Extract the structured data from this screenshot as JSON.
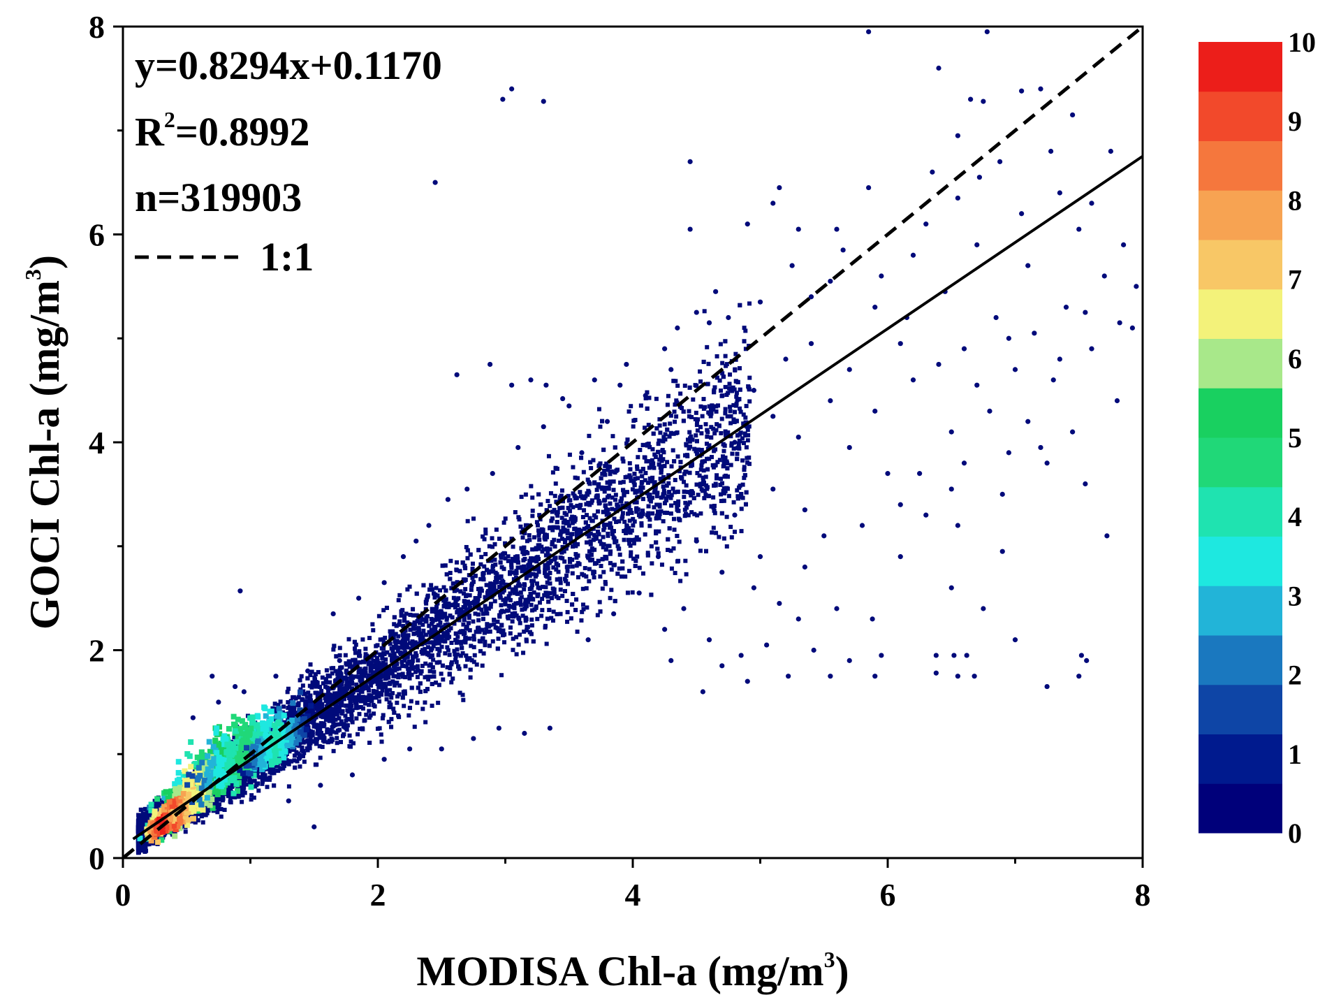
{
  "chart_data": {
    "type": "scatter",
    "subtype": "density-scatter",
    "xlabel": "MODISA Chl-a (mg/m3)",
    "xlabel_main": "MODISA Chl-a (mg/m",
    "ylabel": "GOCI Chl-a (mg/m3)",
    "ylabel_main": "GOCI Chl-a (mg/m",
    "unit_superscript": "3",
    "label_close": ")",
    "xlim": [
      0,
      8
    ],
    "ylim": [
      0,
      8
    ],
    "x_ticks": [
      0,
      2,
      4,
      6,
      8
    ],
    "y_ticks": [
      0,
      2,
      4,
      6,
      8
    ],
    "tick_labels": [
      "0",
      "2",
      "4",
      "6",
      "8"
    ],
    "grid": false,
    "annotations": {
      "equation": "y=0.8294x+0.1170",
      "r2_prefix": "R",
      "r2_sup": "2",
      "r2_value": "=0.8992",
      "n": "n=319903",
      "one_to_one_label": "1:1"
    },
    "fit_line": {
      "slope": 0.8294,
      "intercept": 0.117,
      "style": "solid",
      "color": "#000000"
    },
    "reference_line": {
      "slope": 1,
      "intercept": 0,
      "style": "dashed",
      "color": "#000000"
    },
    "n_points": 319903,
    "colorbar": {
      "min": 0,
      "max": 10,
      "labels": [
        "0",
        "1",
        "2",
        "3",
        "4",
        "5",
        "6",
        "7",
        "8",
        "9",
        "10"
      ],
      "colors": [
        "#00007a",
        "#001a8e",
        "#0e45a6",
        "#1a78bf",
        "#22b4d8",
        "#1ee8e0",
        "#1fe3b0",
        "#20d878",
        "#19d060",
        "#a8e88a",
        "#f3f27a",
        "#f8c766",
        "#f7a352",
        "#f5773d",
        "#f2492b",
        "#ec1e1a"
      ]
    },
    "point_color": "#000a7a",
    "outliers": [
      [
        5.85,
        7.95
      ],
      [
        6.78,
        7.95
      ],
      [
        6.4,
        7.6
      ],
      [
        3.05,
        7.4
      ],
      [
        2.98,
        7.3
      ],
      [
        3.3,
        7.28
      ],
      [
        6.65,
        7.3
      ],
      [
        6.75,
        7.28
      ],
      [
        7.05,
        7.38
      ],
      [
        7.2,
        7.4
      ],
      [
        7.45,
        7.15
      ],
      [
        6.55,
        6.95
      ],
      [
        6.88,
        6.7
      ],
      [
        4.45,
        6.7
      ],
      [
        6.72,
        6.55
      ],
      [
        7.28,
        6.8
      ],
      [
        7.75,
        6.8
      ],
      [
        2.45,
        6.5
      ],
      [
        5.15,
        6.45
      ],
      [
        4.45,
        6.05
      ],
      [
        4.9,
        6.1
      ],
      [
        5.3,
        6.05
      ],
      [
        5.1,
        6.3
      ],
      [
        5.85,
        6.45
      ],
      [
        6.35,
        6.6
      ],
      [
        6.55,
        6.35
      ],
      [
        7.05,
        6.2
      ],
      [
        7.5,
        6.05
      ],
      [
        7.85,
        5.9
      ],
      [
        7.95,
        5.5
      ],
      [
        7.82,
        5.15
      ],
      [
        7.92,
        5.1
      ],
      [
        2.62,
        4.65
      ],
      [
        2.88,
        4.75
      ],
      [
        3.05,
        4.55
      ],
      [
        3.2,
        4.6
      ],
      [
        3.32,
        4.55
      ],
      [
        3.45,
        4.42
      ],
      [
        5.7,
        3.95
      ],
      [
        6.0,
        3.7
      ],
      [
        6.5,
        3.55
      ],
      [
        7.2,
        3.95
      ],
      [
        7.55,
        3.6
      ],
      [
        7.72,
        3.1
      ],
      [
        6.9,
        2.95
      ],
      [
        6.55,
        3.2
      ],
      [
        6.1,
        3.4
      ],
      [
        6.5,
        2.6
      ],
      [
        5.6,
        2.4
      ],
      [
        5.88,
        2.3
      ],
      [
        6.38,
        1.95
      ],
      [
        6.52,
        1.95
      ],
      [
        6.62,
        1.95
      ],
      [
        6.38,
        1.78
      ],
      [
        6.55,
        1.75
      ],
      [
        6.68,
        1.75
      ],
      [
        7.25,
        1.65
      ],
      [
        7.52,
        1.95
      ],
      [
        7.56,
        1.9
      ],
      [
        7.5,
        1.75
      ],
      [
        5.3,
        2.3
      ],
      [
        5.42,
        2.0
      ],
      [
        5.55,
        1.75
      ],
      [
        5.9,
        1.75
      ],
      [
        5.22,
        1.75
      ],
      [
        5.7,
        1.9
      ],
      [
        5.95,
        1.95
      ],
      [
        0.92,
        2.57
      ],
      [
        0.7,
        1.75
      ],
      [
        0.88,
        1.65
      ],
      [
        1.5,
        0.3
      ],
      [
        4.85,
        1.95
      ],
      [
        5.05,
        2.05
      ],
      [
        5.15,
        2.45
      ],
      [
        5.0,
        2.9
      ],
      [
        4.4,
        2.4
      ],
      [
        4.6,
        2.1
      ],
      [
        4.3,
        1.9
      ],
      [
        4.7,
        1.85
      ],
      [
        4.55,
        1.6
      ],
      [
        4.9,
        1.7
      ],
      [
        5.35,
        2.8
      ],
      [
        5.5,
        3.1
      ],
      [
        5.8,
        3.2
      ],
      [
        6.1,
        2.9
      ],
      [
        6.3,
        3.3
      ],
      [
        6.9,
        3.5
      ],
      [
        7.1,
        4.2
      ],
      [
        6.8,
        4.3
      ],
      [
        7.3,
        4.6
      ],
      [
        7.6,
        4.9
      ],
      [
        6.6,
        4.9
      ],
      [
        6.95,
        5.0
      ],
      [
        7.4,
        5.3
      ],
      [
        7.7,
        5.6
      ],
      [
        7.1,
        5.7
      ],
      [
        6.2,
        4.6
      ],
      [
        6.5,
        4.1
      ],
      [
        5.9,
        4.3
      ],
      [
        5.55,
        5.55
      ],
      [
        5.9,
        5.3
      ],
      [
        6.2,
        5.8
      ],
      [
        6.7,
        5.9
      ],
      [
        7.35,
        6.4
      ],
      [
        7.6,
        6.3
      ],
      [
        6.3,
        6.1
      ],
      [
        5.6,
        6.05
      ],
      [
        5.25,
        5.7
      ],
      [
        5.0,
        5.35
      ],
      [
        4.75,
        5.2
      ],
      [
        4.6,
        5.15
      ],
      [
        4.95,
        4.5
      ],
      [
        5.2,
        4.8
      ],
      [
        5.4,
        4.95
      ],
      [
        5.7,
        4.7
      ],
      [
        6.1,
        4.95
      ],
      [
        6.45,
        5.45
      ],
      [
        6.85,
        5.2
      ],
      [
        7.15,
        5.05
      ],
      [
        7.55,
        5.25
      ],
      [
        7.35,
        4.8
      ],
      [
        7.0,
        4.7
      ],
      [
        6.7,
        4.55
      ],
      [
        6.4,
        4.75
      ],
      [
        6.15,
        5.2
      ],
      [
        5.95,
        5.6
      ],
      [
        5.65,
        5.85
      ],
      [
        5.4,
        5.4
      ],
      [
        7.8,
        4.4
      ],
      [
        7.45,
        4.1
      ],
      [
        7.25,
        3.8
      ],
      [
        6.95,
        3.9
      ],
      [
        6.6,
        3.8
      ],
      [
        6.25,
        3.7
      ],
      [
        6.75,
        2.4
      ],
      [
        7.0,
        2.1
      ],
      [
        3.6,
        3.9
      ],
      [
        3.8,
        4.2
      ],
      [
        4.1,
        4.45
      ],
      [
        4.3,
        4.7
      ],
      [
        3.9,
        4.55
      ],
      [
        4.25,
        4.9
      ],
      [
        4.5,
        5.25
      ],
      [
        4.65,
        5.45
      ],
      [
        4.35,
        5.1
      ],
      [
        4.8,
        4.0
      ],
      [
        5.1,
        4.25
      ],
      [
        5.3,
        4.05
      ],
      [
        5.55,
        4.4
      ],
      [
        4.2,
        2.9
      ],
      [
        4.5,
        3.05
      ],
      [
        4.8,
        3.3
      ],
      [
        5.1,
        3.55
      ],
      [
        5.35,
        3.35
      ],
      [
        4.95,
        2.6
      ],
      [
        4.7,
        2.75
      ],
      [
        4.05,
        2.55
      ],
      [
        4.25,
        2.2
      ],
      [
        3.85,
        2.35
      ],
      [
        3.65,
        2.1
      ],
      [
        0.55,
        1.35
      ],
      [
        0.75,
        1.5
      ],
      [
        0.95,
        1.6
      ],
      [
        1.2,
        1.75
      ],
      [
        1.45,
        1.8
      ],
      [
        1.7,
        1.9
      ],
      [
        1.3,
        0.55
      ],
      [
        1.55,
        0.7
      ],
      [
        1.8,
        0.8
      ],
      [
        2.05,
        0.95
      ],
      [
        2.25,
        1.05
      ],
      [
        2.5,
        1.05
      ],
      [
        2.75,
        1.15
      ],
      [
        2.95,
        1.25
      ],
      [
        3.15,
        1.2
      ],
      [
        3.35,
        1.25
      ],
      [
        2.2,
        2.9
      ],
      [
        2.4,
        3.2
      ],
      [
        2.55,
        3.45
      ],
      [
        2.3,
        3.05
      ],
      [
        2.05,
        2.65
      ],
      [
        1.85,
        2.5
      ],
      [
        1.65,
        2.35
      ],
      [
        2.7,
        3.55
      ],
      [
        2.9,
        3.7
      ],
      [
        3.1,
        3.95
      ],
      [
        3.3,
        4.15
      ],
      [
        3.5,
        4.35
      ],
      [
        3.7,
        4.6
      ],
      [
        3.95,
        4.75
      ]
    ]
  }
}
